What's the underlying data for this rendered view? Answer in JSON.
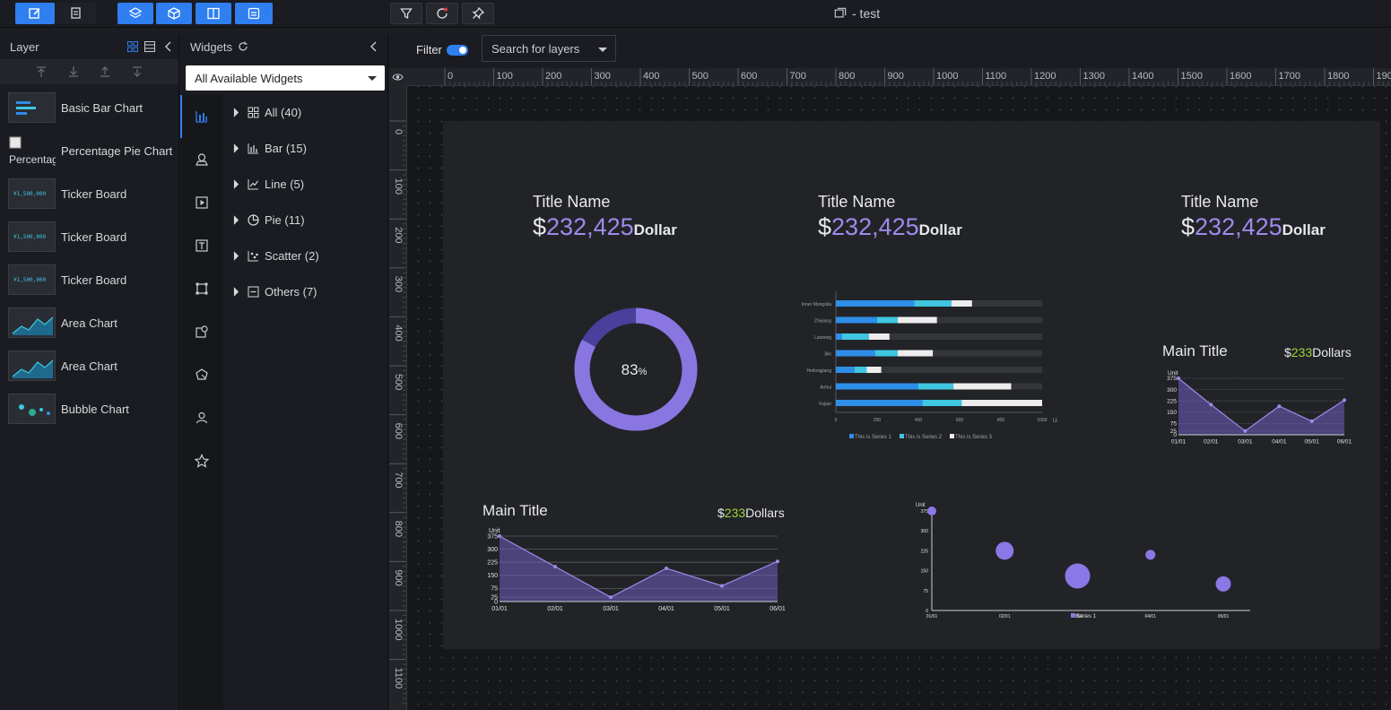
{
  "document": {
    "title": "- test"
  },
  "toolbar": {
    "left_buttons": [
      "edit-icon",
      "export-icon"
    ],
    "view_buttons": [
      "layers-icon",
      "box-icon",
      "split-panel-icon",
      "panel-icon"
    ],
    "tool_buttons": [
      "filter-icon",
      "refresh-icon",
      "pin-icon"
    ]
  },
  "layer_panel": {
    "title": "Layer",
    "items": [
      {
        "label": "Basic Bar Chart",
        "thumb": "bar"
      },
      {
        "label": "Percentage Pie Chart",
        "thumb": "broken",
        "thumb_alt": "Percentage"
      },
      {
        "label": "Ticker Board",
        "thumb": "ticker",
        "thumb_text": "¥1,500,000"
      },
      {
        "label": "Ticker Board",
        "thumb": "ticker",
        "thumb_text": "¥1,500,000"
      },
      {
        "label": "Ticker Board",
        "thumb": "ticker",
        "thumb_text": "¥1,500,000"
      },
      {
        "label": "Area Chart",
        "thumb": "area"
      },
      {
        "label": "Area Chart",
        "thumb": "area"
      },
      {
        "label": "Bubble Chart",
        "thumb": "bubble"
      }
    ]
  },
  "widget_panel": {
    "title": "Widgets",
    "select_value": "All Available Widgets",
    "categories": [
      {
        "label": "All (40)",
        "icon": "grid-icon"
      },
      {
        "label": "Bar (15)",
        "icon": "bar-chart-icon"
      },
      {
        "label": "Line (5)",
        "icon": "line-chart-icon"
      },
      {
        "label": "Pie (11)",
        "icon": "pie-chart-icon"
      },
      {
        "label": "Scatter (2)",
        "icon": "scatter-icon"
      },
      {
        "label": "Others (7)",
        "icon": "others-icon"
      }
    ],
    "rail_icons": [
      "bar-chart-icon",
      "map-pin-icon",
      "media-icon",
      "text-icon",
      "shape-icon",
      "map-icon",
      "globe-icon",
      "user-icon",
      "star-icon"
    ]
  },
  "canvas": {
    "filter_label": "Filter",
    "filter_on": true,
    "search_placeholder": "Search for layers",
    "ruler_h": [
      "0",
      "100",
      "200",
      "300",
      "400",
      "500",
      "600",
      "700",
      "800",
      "900",
      "1000",
      "1100",
      "1200",
      "1300",
      "1400",
      "1500",
      "1600",
      "1700",
      "1800",
      "190"
    ],
    "ruler_v": [
      "0",
      "100",
      "200",
      "300",
      "400",
      "500",
      "600",
      "700",
      "800",
      "900",
      "1000",
      "1100"
    ]
  },
  "screen": {
    "kpis": [
      {
        "title": "Title Name",
        "currency": "$",
        "value": "232,425",
        "unit": "Dollar"
      },
      {
        "title": "Title Name",
        "currency": "$",
        "value": "232,425",
        "unit": "Dollar"
      },
      {
        "title": "Title Name",
        "currency": "$",
        "value": "232,425",
        "unit": "Dollar"
      }
    ],
    "donut": {
      "percent": 83,
      "label": "83",
      "suffix": "%",
      "colors": [
        "#8a76e0",
        "#4a3f9a"
      ]
    },
    "area_right": {
      "title": "Main Title",
      "amount_currency": "$",
      "amount_value": "233",
      "amount_unit": "Dollars"
    },
    "area_left": {
      "title": "Main Title",
      "amount_currency": "$",
      "amount_value": "233",
      "amount_unit": "Dollars"
    }
  },
  "chart_data": [
    {
      "type": "bar",
      "orientation": "horizontal",
      "stacked": true,
      "categories": [
        "Inner Mongolia",
        "Zhejiang",
        "Liaoning",
        "Jilin",
        "Heilongjiang",
        "Anhui",
        "Fujian"
      ],
      "series": [
        {
          "name": "This is Series 1",
          "color": "#2e8ee8",
          "values": [
            380,
            200,
            30,
            190,
            90,
            400,
            420
          ]
        },
        {
          "name": "This is Series 2",
          "color": "#3fc6e0",
          "values": [
            180,
            100,
            130,
            110,
            60,
            170,
            190
          ]
        },
        {
          "name": "This is Series 3",
          "color": "#ededed",
          "values": [
            100,
            190,
            100,
            170,
            70,
            280,
            390
          ]
        }
      ],
      "xlabel": "Unit",
      "xticks": [
        "0",
        "200",
        "400",
        "600",
        "800",
        "1000"
      ],
      "xlim": [
        0,
        1000
      ]
    },
    {
      "type": "area",
      "title": "Main Title",
      "ylabel": "Unit",
      "categories": [
        "01/01",
        "02/01",
        "03/01",
        "04/01",
        "05/01",
        "06/01"
      ],
      "x_positions": [
        0,
        1.05,
        2.15,
        3.25,
        4.3,
        5.35
      ],
      "values": [
        375,
        200,
        25,
        190,
        90,
        230
      ],
      "yticks": [
        "0",
        "25",
        "75",
        "150",
        "225",
        "300",
        "375"
      ],
      "ylim": [
        0,
        375
      ]
    },
    {
      "type": "area",
      "title": "Main Title",
      "ylabel": "Unit",
      "categories": [
        "01/01",
        "02/01",
        "03/01",
        "04/01",
        "05/01",
        "06/01"
      ],
      "values": [
        375,
        200,
        25,
        190,
        90,
        230
      ],
      "yticks": [
        "0",
        "25",
        "75",
        "150",
        "225",
        "300",
        "375"
      ],
      "ylim": [
        0,
        375
      ]
    },
    {
      "type": "scatter",
      "ylabel": "Unit",
      "categories": [
        "01/01",
        "02/01",
        "03/01",
        "04/01",
        "05/01"
      ],
      "series": [
        {
          "name": "Series 1",
          "color": "#8a78e6",
          "points": [
            {
              "x": 0,
              "y": 375,
              "size": 5
            },
            {
              "x": 1,
              "y": 225,
              "size": 10
            },
            {
              "x": 2,
              "y": 130,
              "size": 14
            },
            {
              "x": 3,
              "y": 210,
              "size": 5.5
            },
            {
              "x": 4,
              "y": 100,
              "size": 8.5
            }
          ]
        }
      ],
      "yticks": [
        "0",
        "75",
        "150",
        "225",
        "300",
        "375"
      ],
      "ylim": [
        0,
        375
      ]
    }
  ]
}
